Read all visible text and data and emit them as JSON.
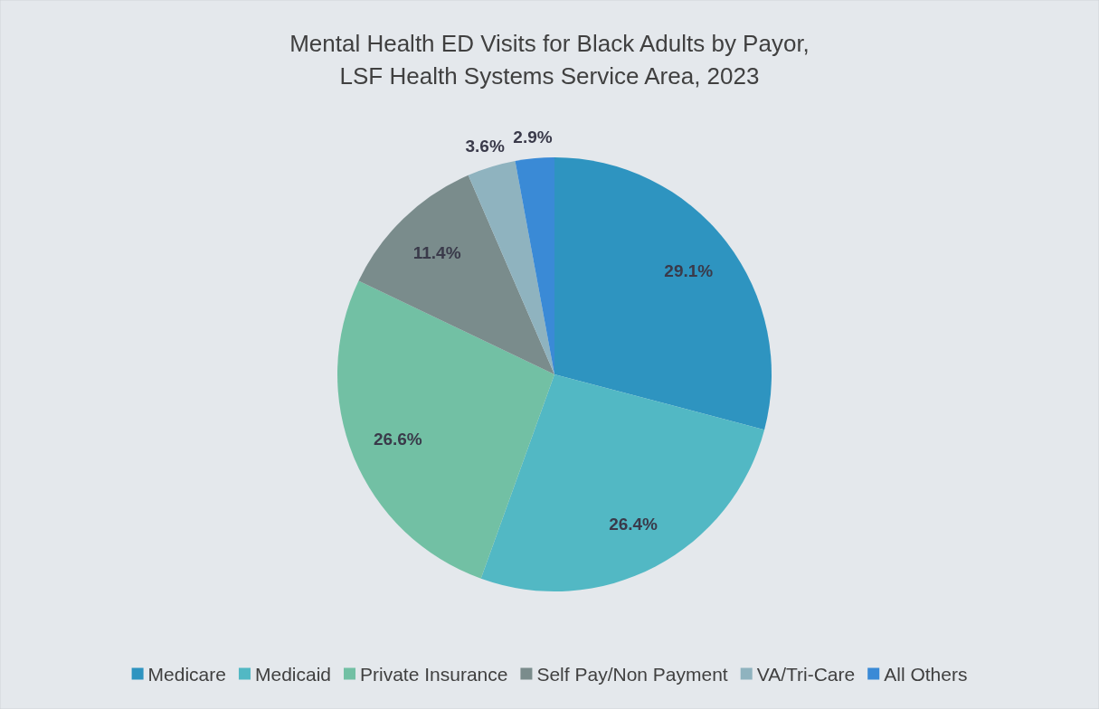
{
  "chart_data": {
    "type": "pie",
    "title": "Mental Health ED Visits for Black Adults by Payor,\nLSF Health Systems Service Area, 2023",
    "categories": [
      "Medicare",
      "Medicaid",
      "Private Insurance",
      "Self Pay/Non Payment",
      "VA/Tri-Care",
      "All Others"
    ],
    "values": [
      29.1,
      26.4,
      26.6,
      11.4,
      3.6,
      2.9
    ],
    "colors": [
      "#2e94c0",
      "#52b8c4",
      "#72c0a4",
      "#7a8c8c",
      "#8fb3bf",
      "#3a8ad6"
    ],
    "value_labels": [
      "29.1%",
      "26.4%",
      "26.6%",
      "11.4%",
      "3.6%",
      "2.9%"
    ],
    "legend": "bottom"
  }
}
